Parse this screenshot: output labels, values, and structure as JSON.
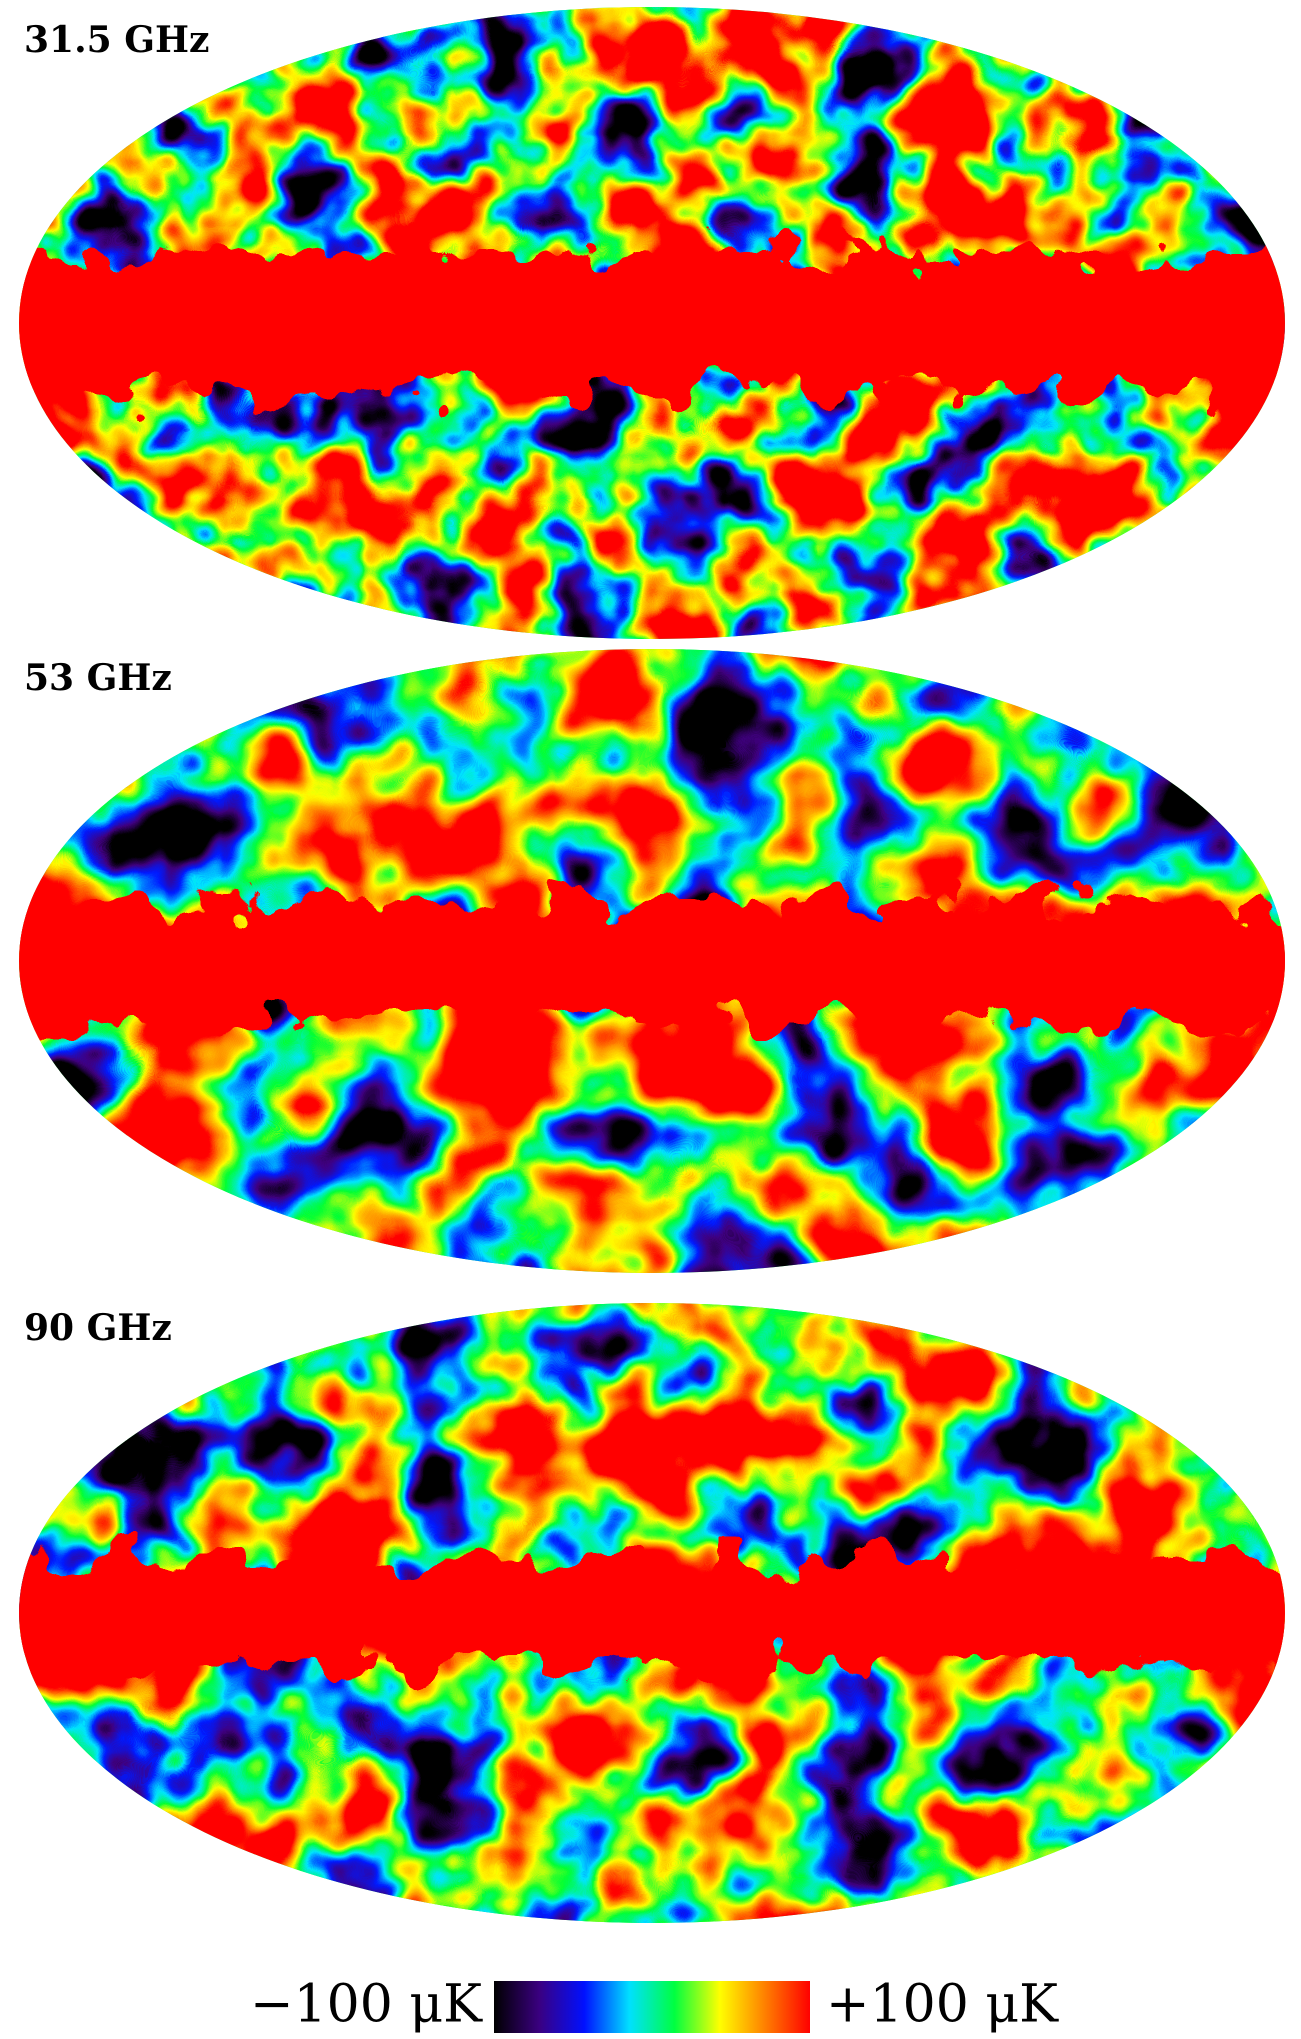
{
  "panels": [
    {
      "label": "31.5 GHz"
    },
    {
      "label": "53 GHz"
    },
    {
      "label": "90 GHz"
    }
  ],
  "colorbar": {
    "min_label": "−100 μK",
    "max_label": "+100 μK",
    "colors": [
      "#000000",
      "#3a0080",
      "#0010ff",
      "#00e0ff",
      "#00ff40",
      "#ffff00",
      "#ff8000",
      "#ff0000"
    ]
  }
}
